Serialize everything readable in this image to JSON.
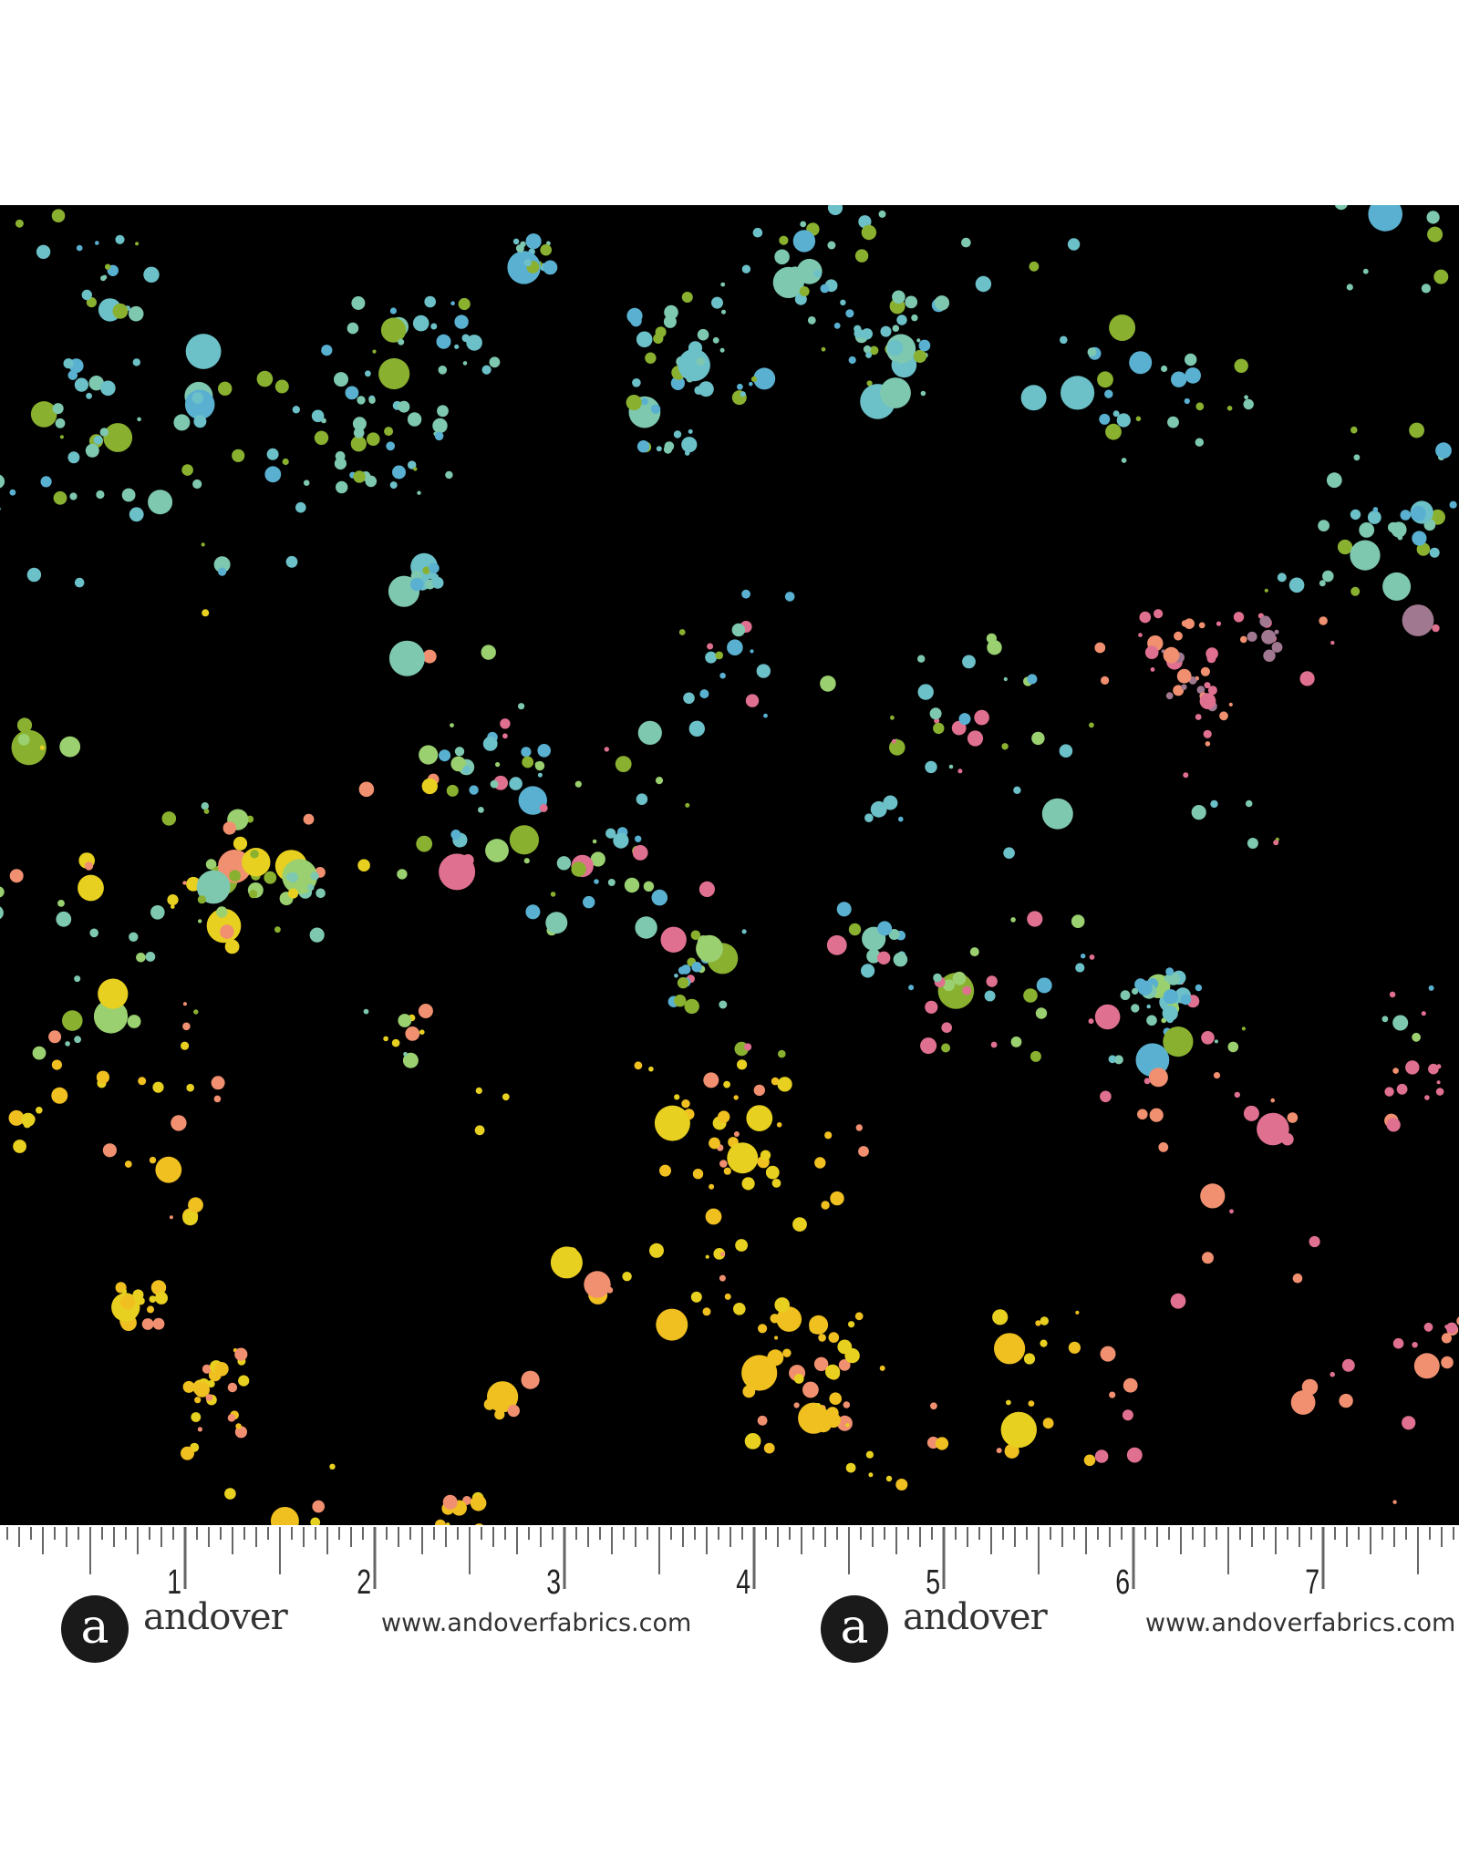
{
  "ruler": {
    "numbers": [
      "1",
      "2",
      "3",
      "4",
      "5",
      "6",
      "7"
    ],
    "unit": "inch"
  },
  "branding": [
    {
      "logo_letter": "a",
      "name": "andover",
      "url": "www.andoverfabrics.com"
    },
    {
      "logo_letter": "a",
      "name": "andover",
      "url": "www.andoverfabrics.com"
    }
  ],
  "colors": {
    "background": "#000000",
    "dots": [
      "#7ec8b0",
      "#6cc0c8",
      "#5ab0d0",
      "#8ab030",
      "#e8d020",
      "#f0c020",
      "#f09070",
      "#e07090",
      "#a07890",
      "#9ad070"
    ]
  }
}
